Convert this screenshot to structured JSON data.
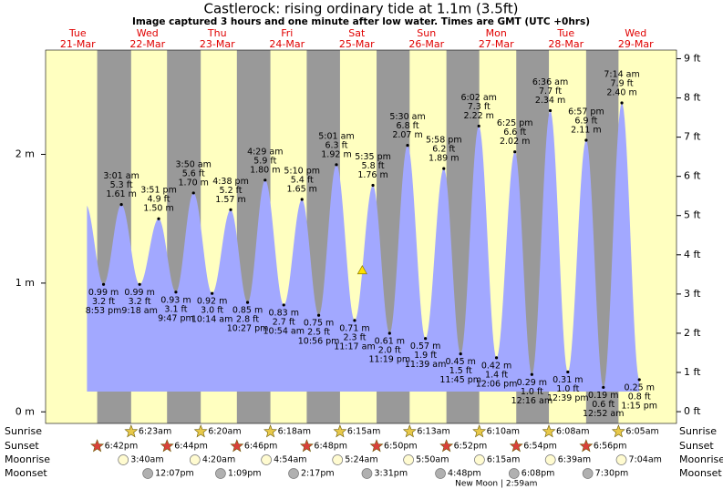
{
  "title": "Castlerock: rising  ordinary tide at 1.1m (3.5ft)",
  "subtitle": "Image captured 3 hours and one minute after low water. Times are GMT (UTC +0hrs)",
  "chart_data": {
    "type": "tide",
    "ylim": [
      -0.09,
      2.81
    ],
    "yticks": [
      {
        "value": 0,
        "label": "0 m"
      },
      {
        "value": 1,
        "label": "1 m"
      },
      {
        "value": 2,
        "label": "2 m"
      }
    ],
    "y2lim": [
      -0.3,
      9.22
    ],
    "y2ticks": [
      {
        "value": 0,
        "label": "0 ft"
      },
      {
        "value": 1,
        "label": "1 ft"
      },
      {
        "value": 2,
        "label": "2 ft"
      },
      {
        "value": 3,
        "label": "3 ft"
      },
      {
        "value": 4,
        "label": "4 ft"
      },
      {
        "value": 5,
        "label": "5 ft"
      },
      {
        "value": 6,
        "label": "6 ft"
      },
      {
        "value": 7,
        "label": "7 ft"
      },
      {
        "value": 8,
        "label": "8 ft"
      },
      {
        "value": 9,
        "label": "9 ft"
      }
    ],
    "current_height": 1.1,
    "row_labels": [
      "Sunrise",
      "Sunset",
      "Moonrise",
      "Moonset"
    ],
    "moon_phase": "New Moon | 2:59am",
    "days": [
      {
        "weekday": "Tue",
        "date": "21-Mar",
        "sunset": "6:42pm",
        "tides": [
          {
            "time": "8:53 pm",
            "height": 0.99,
            "height_label": "0.99 m",
            "feet_label": "3.2 ft"
          }
        ]
      },
      {
        "weekday": "Wed",
        "date": "22-Mar",
        "sunrise": "6:23am",
        "sunset": "6:44pm",
        "moonrise": "3:40am",
        "moonset": "12:07pm",
        "tides": [
          {
            "time": "3:01 am",
            "height": 1.61,
            "height_label": "1.61 m",
            "feet_label": "5.3 ft"
          },
          {
            "time": "9:18 am",
            "height": 0.99,
            "height_label": "0.99 m",
            "feet_label": "3.2 ft"
          },
          {
            "time": "3:51 pm",
            "height": 1.5,
            "height_label": "1.50 m",
            "feet_label": "4.9 ft"
          },
          {
            "time": "9:47 pm",
            "height": 0.93,
            "height_label": "0.93 m",
            "feet_label": "3.1 ft"
          }
        ]
      },
      {
        "weekday": "Thu",
        "date": "23-Mar",
        "sunrise": "6:20am",
        "sunset": "6:46pm",
        "moonrise": "4:20am",
        "moonset": "1:09pm",
        "tides": [
          {
            "time": "3:50 am",
            "height": 1.7,
            "height_label": "1.70 m",
            "feet_label": "5.6 ft"
          },
          {
            "time": "10:14 am",
            "height": 0.92,
            "height_label": "0.92 m",
            "feet_label": "3.0 ft"
          },
          {
            "time": "4:38 pm",
            "height": 1.57,
            "height_label": "1.57 m",
            "feet_label": "5.2 ft"
          },
          {
            "time": "10:27 pm",
            "height": 0.85,
            "height_label": "0.85 m",
            "feet_label": "2.8 ft"
          }
        ]
      },
      {
        "weekday": "Fri",
        "date": "24-Mar",
        "sunrise": "6:18am",
        "sunset": "6:48pm",
        "moonrise": "4:54am",
        "moonset": "2:17pm",
        "tides": [
          {
            "time": "4:29 am",
            "height": 1.8,
            "height_label": "1.80 m",
            "feet_label": "5.9 ft"
          },
          {
            "time": "10:54 am",
            "height": 0.83,
            "height_label": "0.83 m",
            "feet_label": "2.7 ft"
          },
          {
            "time": "5:10 pm",
            "height": 1.65,
            "height_label": "1.65 m",
            "feet_label": "5.4 ft"
          },
          {
            "time": "10:56 pm",
            "height": 0.75,
            "height_label": "0.75 m",
            "feet_label": "2.5 ft"
          }
        ]
      },
      {
        "weekday": "Sat",
        "date": "25-Mar",
        "sunrise": "6:15am",
        "sunset": "6:50pm",
        "moonrise": "5:24am",
        "moonset": "3:31pm",
        "tides": [
          {
            "time": "5:01 am",
            "height": 1.92,
            "height_label": "1.92 m",
            "feet_label": "6.3 ft"
          },
          {
            "time": "11:17 am",
            "height": 0.71,
            "height_label": "0.71 m",
            "feet_label": "2.3 ft"
          },
          {
            "time": "5:35 pm",
            "height": 1.76,
            "height_label": "1.76 m",
            "feet_label": "5.8 ft"
          },
          {
            "time": "11:19 pm",
            "height": 0.61,
            "height_label": "0.61 m",
            "feet_label": "2.0 ft"
          }
        ]
      },
      {
        "weekday": "Sun",
        "date": "26-Mar",
        "sunrise": "6:13am",
        "sunset": "6:52pm",
        "moonrise": "5:50am",
        "moonset": "4:48pm",
        "tides": [
          {
            "time": "5:30 am",
            "height": 2.07,
            "height_label": "2.07 m",
            "feet_label": "6.8 ft"
          },
          {
            "time": "11:39 am",
            "height": 0.57,
            "height_label": "0.57 m",
            "feet_label": "1.9 ft"
          },
          {
            "time": "5:58 pm",
            "height": 1.89,
            "height_label": "1.89 m",
            "feet_label": "6.2 ft"
          },
          {
            "time": "11:45 pm",
            "height": 0.45,
            "height_label": "0.45 m",
            "feet_label": "1.5 ft"
          }
        ]
      },
      {
        "weekday": "Mon",
        "date": "27-Mar",
        "sunrise": "6:10am",
        "sunset": "6:54pm",
        "moonrise": "6:15am",
        "moonset": "6:08pm",
        "tides": [
          {
            "time": "6:02 am",
            "height": 2.22,
            "height_label": "2.22 m",
            "feet_label": "7.3 ft"
          },
          {
            "time": "12:06 pm",
            "height": 0.42,
            "height_label": "0.42 m",
            "feet_label": "1.4 ft"
          },
          {
            "time": "6:25 pm",
            "height": 2.02,
            "height_label": "2.02 m",
            "feet_label": "6.6 ft"
          }
        ]
      },
      {
        "weekday": "Tue",
        "date": "28-Mar",
        "sunrise": "6:08am",
        "sunset": "6:56pm",
        "moonrise": "6:39am",
        "moonset": "7:30pm",
        "tides": [
          {
            "time": "12:16 am",
            "height": 0.29,
            "height_label": "0.29 m",
            "feet_label": "1.0 ft"
          },
          {
            "time": "6:36 am",
            "height": 2.34,
            "height_label": "2.34 m",
            "feet_label": "7.7 ft"
          },
          {
            "time": "12:39 pm",
            "height": 0.31,
            "height_label": "0.31 m",
            "feet_label": "1.0 ft"
          },
          {
            "time": "6:57 pm",
            "height": 2.11,
            "height_label": "2.11 m",
            "feet_label": "6.9 ft"
          }
        ]
      },
      {
        "weekday": "Wed",
        "date": "29-Mar",
        "sunrise": "6:05am",
        "moonrise": "7:04am",
        "tides": [
          {
            "time": "12:52 am",
            "height": 0.19,
            "height_label": "0.19 m",
            "feet_label": "0.6 ft"
          },
          {
            "time": "7:14 am",
            "height": 2.4,
            "height_label": "2.40 m",
            "feet_label": "7.9 ft"
          },
          {
            "time": "1:15 pm",
            "height": 0.25,
            "height_label": "0.25 m",
            "feet_label": "0.8 ft"
          }
        ]
      }
    ]
  }
}
